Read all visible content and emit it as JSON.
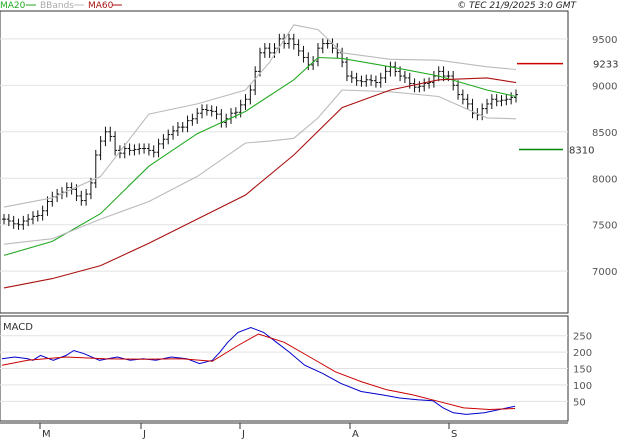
{
  "legend": {
    "ma20_label": "MA20",
    "bbands_label": "BBands",
    "ma60_label": "MA60",
    "ma20_color": "#22aa22",
    "bbands_color": "#bbbbbb",
    "ma60_color": "#aa1111"
  },
  "copyright": "© TEC 21/9/2025 3:0 GMT",
  "macd_label": "MACD",
  "chart_data": [
    {
      "type": "ohlc",
      "panel": "price",
      "x_labels": [
        "M",
        "J",
        "J",
        "A",
        "S"
      ],
      "y_ticks": [
        7000,
        7500,
        8000,
        8500,
        9000,
        9500
      ],
      "y_tick_labels": [
        "7000",
        "7500",
        "8000",
        "8500",
        "9000",
        "9500"
      ],
      "ylim": [
        6550,
        9800
      ],
      "grid": true,
      "annotations": [
        {
          "label": "9233",
          "value": 9233,
          "color": "#cc0000"
        },
        {
          "label": "8310",
          "value": 8310,
          "color": "#008800"
        }
      ],
      "closes": [
        7560,
        7540,
        7510,
        7500,
        7540,
        7560,
        7590,
        7600,
        7650,
        7750,
        7800,
        7830,
        7850,
        7900,
        7880,
        7810,
        7760,
        7830,
        7950,
        8250,
        8400,
        8500,
        8450,
        8300,
        8270,
        8320,
        8300,
        8310,
        8320,
        8320,
        8300,
        8280,
        8370,
        8420,
        8470,
        8510,
        8550,
        8550,
        8620,
        8640,
        8700,
        8740,
        8730,
        8720,
        8690,
        8600,
        8640,
        8700,
        8710,
        8790,
        8850,
        8950,
        9150,
        9350,
        9400,
        9350,
        9400,
        9500,
        9450,
        9500,
        9440,
        9370,
        9300,
        9220,
        9260,
        9400,
        9450,
        9450,
        9400,
        9350,
        9250,
        9100,
        9080,
        9050,
        9040,
        9060,
        9050,
        9030,
        9080,
        9150,
        9200,
        9150,
        9100,
        9080,
        9020,
        8980,
        8990,
        9020,
        9030,
        9100,
        9150,
        9100,
        9100,
        9000,
        8900,
        8850,
        8800,
        8700,
        8680,
        8750,
        8800,
        8850,
        8830,
        8840,
        8850,
        8870,
        8900
      ],
      "series": [
        {
          "name": "MA20",
          "color": "#22aa22",
          "points": [
            [
              0,
              7170
            ],
            [
              10,
              7320
            ],
            [
              20,
              7620
            ],
            [
              30,
              8130
            ],
            [
              40,
              8480
            ],
            [
              50,
              8720
            ],
            [
              60,
              9060
            ],
            [
              65,
              9300
            ],
            [
              70,
              9290
            ],
            [
              80,
              9200
            ],
            [
              90,
              9100
            ],
            [
              100,
              8950
            ],
            [
              106,
              8880
            ]
          ]
        },
        {
          "name": "BBands",
          "color": "#bbbbbb",
          "points": [
            [
              0,
              7690
            ],
            [
              10,
              7790
            ],
            [
              20,
              8020
            ],
            [
              30,
              8690
            ],
            [
              40,
              8800
            ],
            [
              50,
              8950
            ],
            [
              55,
              9250
            ],
            [
              60,
              9650
            ],
            [
              65,
              9600
            ],
            [
              70,
              9350
            ],
            [
              80,
              9280
            ],
            [
              90,
              9270
            ],
            [
              100,
              9200
            ],
            [
              106,
              9170
            ]
          ]
        },
        {
          "name": "BBands",
          "color": "#bbbbbb",
          "points": [
            [
              0,
              7290
            ],
            [
              10,
              7350
            ],
            [
              20,
              7560
            ],
            [
              30,
              7750
            ],
            [
              40,
              8020
            ],
            [
              50,
              8380
            ],
            [
              55,
              8400
            ],
            [
              60,
              8430
            ],
            [
              65,
              8650
            ],
            [
              70,
              8950
            ],
            [
              80,
              8930
            ],
            [
              90,
              8880
            ],
            [
              100,
              8650
            ],
            [
              106,
              8640
            ]
          ]
        },
        {
          "name": "MA60",
          "color": "#aa1111",
          "points": [
            [
              0,
              6820
            ],
            [
              10,
              6920
            ],
            [
              20,
              7060
            ],
            [
              30,
              7300
            ],
            [
              40,
              7560
            ],
            [
              50,
              7820
            ],
            [
              60,
              8250
            ],
            [
              70,
              8760
            ],
            [
              80,
              8950
            ],
            [
              90,
              9060
            ],
            [
              100,
              9080
            ],
            [
              106,
              9030
            ]
          ]
        }
      ]
    },
    {
      "type": "line",
      "panel": "macd",
      "y_ticks": [
        50,
        100,
        150,
        200,
        250
      ],
      "y_tick_labels": [
        "50",
        "100",
        "150",
        "200",
        "250"
      ],
      "ylim": [
        -10,
        310
      ],
      "grid": true,
      "series": [
        {
          "name": "MACD",
          "color": "#0000cc",
          "points": [
            [
              0,
              180
            ],
            [
              5,
              185
            ],
            [
              10,
              180
            ],
            [
              12,
              175
            ],
            [
              15,
              190
            ],
            [
              20,
              175
            ],
            [
              25,
              190
            ],
            [
              28,
              205
            ],
            [
              32,
              195
            ],
            [
              38,
              175
            ],
            [
              45,
              185
            ],
            [
              50,
              175
            ],
            [
              55,
              180
            ],
            [
              60,
              175
            ],
            [
              66,
              185
            ],
            [
              72,
              180
            ],
            [
              77,
              165
            ],
            [
              82,
              175
            ],
            [
              85,
              200
            ],
            [
              88,
              230
            ],
            [
              92,
              260
            ],
            [
              97,
              275
            ],
            [
              102,
              260
            ],
            [
              107,
              230
            ],
            [
              112,
              200
            ],
            [
              118,
              160
            ],
            [
              125,
              135
            ],
            [
              132,
              105
            ],
            [
              140,
              80
            ],
            [
              148,
              70
            ],
            [
              155,
              60
            ],
            [
              162,
              55
            ],
            [
              168,
              52
            ],
            [
              172,
              30
            ],
            [
              176,
              15
            ],
            [
              181,
              10
            ],
            [
              188,
              15
            ],
            [
              194,
              25
            ],
            [
              200,
              35
            ]
          ]
        },
        {
          "name": "Signal",
          "color": "#cc0000",
          "points": [
            [
              0,
              160
            ],
            [
              10,
              175
            ],
            [
              25,
              185
            ],
            [
              40,
              180
            ],
            [
              55,
              178
            ],
            [
              70,
              180
            ],
            [
              82,
              172
            ],
            [
              92,
              220
            ],
            [
              100,
              255
            ],
            [
              110,
              230
            ],
            [
              120,
              185
            ],
            [
              130,
              140
            ],
            [
              140,
              110
            ],
            [
              150,
              85
            ],
            [
              160,
              70
            ],
            [
              170,
              50
            ],
            [
              180,
              30
            ],
            [
              190,
              25
            ],
            [
              200,
              28
            ]
          ]
        }
      ]
    }
  ]
}
